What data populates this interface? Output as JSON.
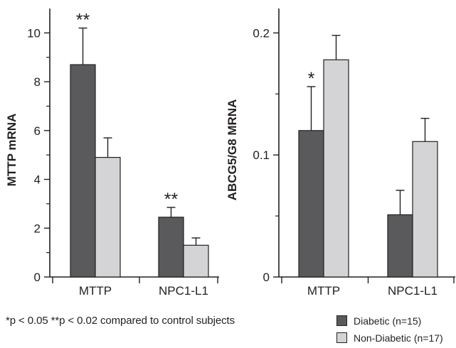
{
  "colors": {
    "diabetic": "#5a5a5c",
    "non_diabetic": "#d4d4d6",
    "axis": "#231f20"
  },
  "footnote": "*p < 0.05  **p < 0.02 compared to control subjects",
  "legend": [
    {
      "label": "Diabetic (n=15)",
      "color": "#5a5a5c"
    },
    {
      "label": "Non-Diabetic (n=17)",
      "color": "#d4d4d6"
    }
  ],
  "chart_data": [
    {
      "type": "bar",
      "ylabel": "MTTP mRNA",
      "ylim": [
        0,
        11
      ],
      "yticks": [
        0,
        2,
        4,
        6,
        8,
        10
      ],
      "ytick_labels": [
        "0",
        "2",
        "4",
        "6",
        "8",
        "10"
      ],
      "categories": [
        "MTTP",
        "NPC1-L1"
      ],
      "series": [
        {
          "name": "Diabetic (n=15)",
          "values": [
            8.7,
            2.45
          ],
          "errors": [
            1.5,
            0.4
          ],
          "color": "#5a5a5c"
        },
        {
          "name": "Non-Diabetic (n=17)",
          "values": [
            4.9,
            1.3
          ],
          "errors": [
            0.8,
            0.3
          ],
          "color": "#d4d4d6"
        }
      ],
      "annotations": [
        {
          "category": 0,
          "series": 0,
          "text": "**"
        },
        {
          "category": 1,
          "series": 0,
          "text": "**"
        }
      ]
    },
    {
      "type": "bar",
      "ylabel": "ABCG5/G8 MRNA",
      "ylim": [
        0,
        0.22
      ],
      "yticks": [
        0,
        0.1,
        0.2
      ],
      "ytick_labels": [
        "0",
        "0.1",
        "0.2"
      ],
      "categories": [
        "MTTP",
        "NPC1-L1"
      ],
      "series": [
        {
          "name": "Diabetic (n=15)",
          "values": [
            0.12,
            0.051
          ],
          "errors": [
            0.036,
            0.02
          ],
          "color": "#5a5a5c"
        },
        {
          "name": "Non-Diabetic (n=17)",
          "values": [
            0.178,
            0.111
          ],
          "errors": [
            0.02,
            0.019
          ],
          "color": "#d4d4d6"
        }
      ],
      "annotations": [
        {
          "category": 0,
          "series": 0,
          "text": "*"
        }
      ]
    }
  ]
}
